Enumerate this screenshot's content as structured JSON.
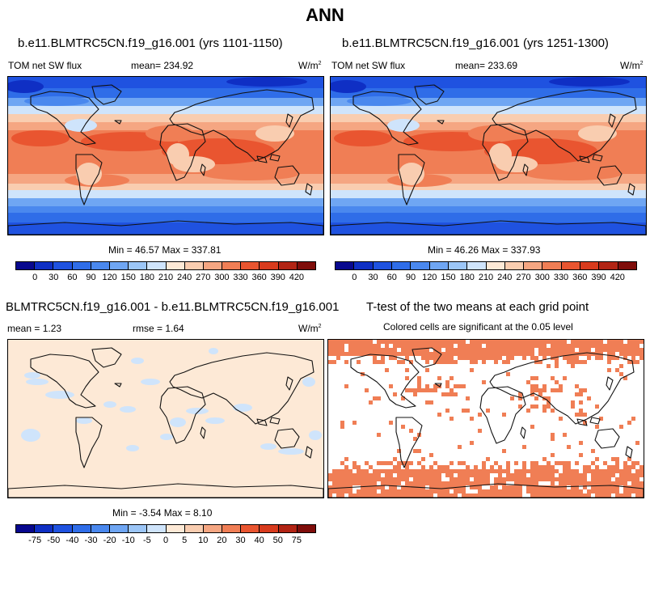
{
  "title": "ANN",
  "panels": [
    {
      "title": "b.e11.BLMTRC5CN.f19_g16.001 (yrs 1101-1150)",
      "variable": "TOM net SW flux",
      "mean_label": "mean= 234.92",
      "units": "W/m",
      "units_sup": "2",
      "stats": "Min =  46.57 Max = 337.81"
    },
    {
      "title": "b.e11.BLMTRC5CN.f19_g16.001 (yrs 1251-1300)",
      "variable": "TOM net SW flux",
      "mean_label": "mean= 233.69",
      "units": "W/m",
      "units_sup": "2",
      "stats": "Min =  46.26 Max = 337.93"
    }
  ],
  "diff_panel": {
    "title": "BLMTRC5CN.f19_g16.001 - b.e11.BLMTRC5CN.f19_g16.001",
    "mean_label": "mean =   1.23",
    "rmse_label": "rmse =   1.64",
    "units": "W/m",
    "units_sup": "2",
    "stats": "Min =  -3.54 Max =   8.10"
  },
  "ttest_panel": {
    "title": "T-test of the two means at each grid point",
    "subtitle": "Colored cells are significant at the 0.05 level"
  },
  "colorbar_main": {
    "colors": [
      "#08088e",
      "#0f2fc4",
      "#1f52e0",
      "#2f6de8",
      "#4a88ee",
      "#6fa6f3",
      "#9cc6f7",
      "#cfe4fb",
      "#fde9d6",
      "#f9cdb0",
      "#f5a682",
      "#f07e55",
      "#e95530",
      "#d83b1d",
      "#b22414",
      "#7f0d0a"
    ],
    "ticks": [
      "0",
      "30",
      "60",
      "90",
      "120",
      "150",
      "180",
      "210",
      "240",
      "270",
      "300",
      "330",
      "360",
      "390",
      "420"
    ]
  },
  "colorbar_diff": {
    "colors": [
      "#08088e",
      "#0f2fc4",
      "#1f52e0",
      "#2f6de8",
      "#4a88ee",
      "#6fa6f3",
      "#9cc6f7",
      "#cfe4fb",
      "#fde9d6",
      "#f9cdb0",
      "#f5a682",
      "#f07e55",
      "#e95530",
      "#d83b1d",
      "#b22414",
      "#7f0d0a"
    ],
    "ticks": [
      "-75",
      "-50",
      "-40",
      "-30",
      "-20",
      "-10",
      "-5",
      "0",
      "5",
      "10",
      "20",
      "30",
      "40",
      "50",
      "75"
    ]
  }
}
